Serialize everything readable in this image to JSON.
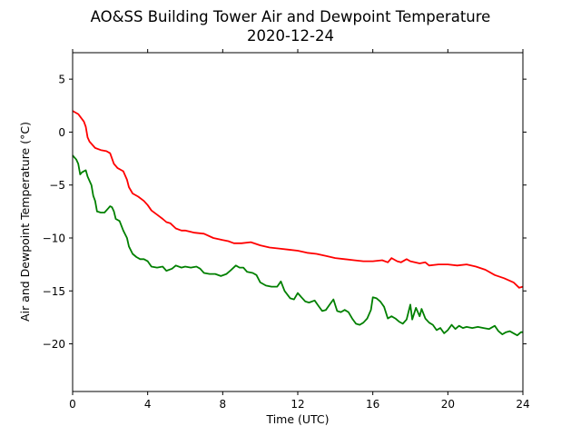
{
  "chart_data": {
    "type": "line",
    "title": "AO&SS Building Tower Air and Dewpoint Temperature",
    "subtitle": "2020-12-24",
    "xlabel": "Time (UTC)",
    "ylabel": "Air and Dewpoint Temperature (°C)",
    "xlim": [
      0,
      24
    ],
    "ylim": [
      -24.5,
      7.5
    ],
    "xticks": [
      0,
      4,
      8,
      12,
      16,
      20,
      24
    ],
    "yticks": [
      5,
      0,
      -5,
      -10,
      -15,
      -20
    ],
    "grid": false,
    "series": [
      {
        "color": "#ff0000",
        "points": [
          [
            0.0,
            2.0
          ],
          [
            0.3,
            1.7
          ],
          [
            0.6,
            1.0
          ],
          [
            0.7,
            0.5
          ],
          [
            0.8,
            -0.5
          ],
          [
            0.9,
            -0.9
          ],
          [
            1.2,
            -1.5
          ],
          [
            1.5,
            -1.7
          ],
          [
            1.8,
            -1.8
          ],
          [
            2.0,
            -2.0
          ],
          [
            2.1,
            -2.5
          ],
          [
            2.2,
            -3.0
          ],
          [
            2.4,
            -3.4
          ],
          [
            2.7,
            -3.7
          ],
          [
            2.9,
            -4.5
          ],
          [
            3.0,
            -5.2
          ],
          [
            3.2,
            -5.8
          ],
          [
            3.5,
            -6.1
          ],
          [
            3.8,
            -6.5
          ],
          [
            4.0,
            -6.9
          ],
          [
            4.2,
            -7.4
          ],
          [
            4.5,
            -7.8
          ],
          [
            4.8,
            -8.2
          ],
          [
            5.0,
            -8.5
          ],
          [
            5.2,
            -8.6
          ],
          [
            5.5,
            -9.1
          ],
          [
            5.8,
            -9.3
          ],
          [
            6.0,
            -9.3
          ],
          [
            6.5,
            -9.5
          ],
          [
            7.0,
            -9.6
          ],
          [
            7.5,
            -10.0
          ],
          [
            8.0,
            -10.2
          ],
          [
            8.3,
            -10.3
          ],
          [
            8.6,
            -10.5
          ],
          [
            9.0,
            -10.5
          ],
          [
            9.5,
            -10.4
          ],
          [
            10.0,
            -10.7
          ],
          [
            10.5,
            -10.9
          ],
          [
            11.0,
            -11.0
          ],
          [
            11.5,
            -11.1
          ],
          [
            12.0,
            -11.2
          ],
          [
            12.5,
            -11.4
          ],
          [
            13.0,
            -11.5
          ],
          [
            13.5,
            -11.7
          ],
          [
            14.0,
            -11.9
          ],
          [
            14.5,
            -12.0
          ],
          [
            15.0,
            -12.1
          ],
          [
            15.5,
            -12.2
          ],
          [
            16.0,
            -12.2
          ],
          [
            16.5,
            -12.1
          ],
          [
            16.8,
            -12.3
          ],
          [
            17.0,
            -11.9
          ],
          [
            17.3,
            -12.2
          ],
          [
            17.5,
            -12.3
          ],
          [
            17.8,
            -12.0
          ],
          [
            18.0,
            -12.2
          ],
          [
            18.5,
            -12.4
          ],
          [
            18.8,
            -12.3
          ],
          [
            19.0,
            -12.6
          ],
          [
            19.5,
            -12.5
          ],
          [
            20.0,
            -12.5
          ],
          [
            20.5,
            -12.6
          ],
          [
            21.0,
            -12.5
          ],
          [
            21.5,
            -12.7
          ],
          [
            22.0,
            -13.0
          ],
          [
            22.5,
            -13.5
          ],
          [
            23.0,
            -13.8
          ],
          [
            23.5,
            -14.2
          ],
          [
            23.8,
            -14.7
          ],
          [
            24.0,
            -14.6
          ]
        ]
      },
      {
        "color": "#008000",
        "points": [
          [
            0.0,
            -2.2
          ],
          [
            0.2,
            -2.6
          ],
          [
            0.3,
            -3.0
          ],
          [
            0.4,
            -4.0
          ],
          [
            0.5,
            -3.8
          ],
          [
            0.7,
            -3.6
          ],
          [
            0.8,
            -4.2
          ],
          [
            1.0,
            -5.0
          ],
          [
            1.1,
            -6.0
          ],
          [
            1.2,
            -6.5
          ],
          [
            1.3,
            -7.5
          ],
          [
            1.5,
            -7.6
          ],
          [
            1.7,
            -7.6
          ],
          [
            1.9,
            -7.2
          ],
          [
            2.0,
            -7.0
          ],
          [
            2.1,
            -7.1
          ],
          [
            2.2,
            -7.5
          ],
          [
            2.3,
            -8.2
          ],
          [
            2.5,
            -8.4
          ],
          [
            2.7,
            -9.3
          ],
          [
            2.9,
            -10.0
          ],
          [
            3.0,
            -10.8
          ],
          [
            3.2,
            -11.5
          ],
          [
            3.4,
            -11.8
          ],
          [
            3.6,
            -12.0
          ],
          [
            3.8,
            -12.0
          ],
          [
            4.0,
            -12.2
          ],
          [
            4.2,
            -12.7
          ],
          [
            4.5,
            -12.8
          ],
          [
            4.8,
            -12.7
          ],
          [
            5.0,
            -13.1
          ],
          [
            5.3,
            -12.9
          ],
          [
            5.5,
            -12.6
          ],
          [
            5.8,
            -12.8
          ],
          [
            6.0,
            -12.7
          ],
          [
            6.3,
            -12.8
          ],
          [
            6.6,
            -12.7
          ],
          [
            6.8,
            -12.9
          ],
          [
            7.0,
            -13.3
          ],
          [
            7.3,
            -13.4
          ],
          [
            7.6,
            -13.4
          ],
          [
            7.9,
            -13.6
          ],
          [
            8.2,
            -13.4
          ],
          [
            8.4,
            -13.1
          ],
          [
            8.7,
            -12.6
          ],
          [
            8.9,
            -12.8
          ],
          [
            9.1,
            -12.8
          ],
          [
            9.3,
            -13.2
          ],
          [
            9.6,
            -13.3
          ],
          [
            9.8,
            -13.5
          ],
          [
            10.0,
            -14.2
          ],
          [
            10.3,
            -14.5
          ],
          [
            10.6,
            -14.6
          ],
          [
            10.9,
            -14.6
          ],
          [
            11.1,
            -14.1
          ],
          [
            11.3,
            -15.0
          ],
          [
            11.6,
            -15.7
          ],
          [
            11.8,
            -15.8
          ],
          [
            12.0,
            -15.2
          ],
          [
            12.2,
            -15.6
          ],
          [
            12.4,
            -16.0
          ],
          [
            12.6,
            -16.1
          ],
          [
            12.9,
            -15.9
          ],
          [
            13.1,
            -16.4
          ],
          [
            13.3,
            -16.9
          ],
          [
            13.5,
            -16.8
          ],
          [
            13.7,
            -16.3
          ],
          [
            13.9,
            -15.8
          ],
          [
            14.1,
            -16.9
          ],
          [
            14.3,
            -17.0
          ],
          [
            14.5,
            -16.8
          ],
          [
            14.7,
            -17.0
          ],
          [
            14.9,
            -17.6
          ],
          [
            15.1,
            -18.1
          ],
          [
            15.3,
            -18.2
          ],
          [
            15.5,
            -18.0
          ],
          [
            15.7,
            -17.6
          ],
          [
            15.9,
            -16.8
          ],
          [
            16.0,
            -15.6
          ],
          [
            16.2,
            -15.7
          ],
          [
            16.4,
            -16.0
          ],
          [
            16.6,
            -16.5
          ],
          [
            16.8,
            -17.6
          ],
          [
            17.0,
            -17.4
          ],
          [
            17.2,
            -17.6
          ],
          [
            17.4,
            -17.9
          ],
          [
            17.6,
            -18.1
          ],
          [
            17.8,
            -17.7
          ],
          [
            18.0,
            -16.3
          ],
          [
            18.1,
            -17.7
          ],
          [
            18.3,
            -16.6
          ],
          [
            18.5,
            -17.4
          ],
          [
            18.6,
            -16.7
          ],
          [
            18.8,
            -17.6
          ],
          [
            19.0,
            -18.0
          ],
          [
            19.2,
            -18.2
          ],
          [
            19.4,
            -18.7
          ],
          [
            19.6,
            -18.5
          ],
          [
            19.8,
            -19.0
          ],
          [
            20.0,
            -18.7
          ],
          [
            20.2,
            -18.2
          ],
          [
            20.4,
            -18.6
          ],
          [
            20.6,
            -18.3
          ],
          [
            20.8,
            -18.5
          ],
          [
            21.0,
            -18.4
          ],
          [
            21.3,
            -18.5
          ],
          [
            21.6,
            -18.4
          ],
          [
            21.9,
            -18.5
          ],
          [
            22.2,
            -18.6
          ],
          [
            22.5,
            -18.3
          ],
          [
            22.7,
            -18.8
          ],
          [
            22.9,
            -19.1
          ],
          [
            23.1,
            -18.9
          ],
          [
            23.3,
            -18.8
          ],
          [
            23.5,
            -19.0
          ],
          [
            23.7,
            -19.2
          ],
          [
            23.9,
            -18.9
          ],
          [
            24.0,
            -18.9
          ]
        ]
      }
    ]
  }
}
